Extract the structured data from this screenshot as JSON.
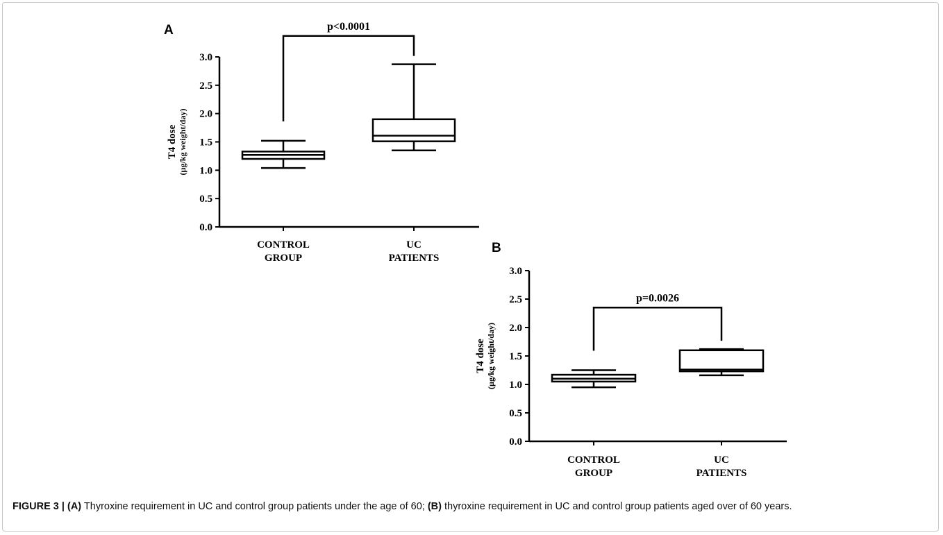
{
  "chart_data": [
    {
      "type": "boxplot",
      "panel_label": "A",
      "ylabel": "T4 dose",
      "ylabel_sub": "(µg/kg weight/day)",
      "ylim": [
        0.0,
        3.0
      ],
      "yticks": [
        "0.0",
        "0.5",
        "1.0",
        "1.5",
        "2.0",
        "2.5",
        "3.0"
      ],
      "categories": [
        [
          "CONTROL",
          "GROUP"
        ],
        [
          "UC",
          "PATIENTS"
        ]
      ],
      "boxes": [
        {
          "min": 1.04,
          "q1": 1.2,
          "median": 1.27,
          "q3": 1.33,
          "max": 1.52
        },
        {
          "min": 1.35,
          "q1": 1.51,
          "median": 1.61,
          "q3": 1.9,
          "max": 2.87
        }
      ],
      "annotation": "p<0.0001",
      "bracket_y": 3.37,
      "grid": false
    },
    {
      "type": "boxplot",
      "panel_label": "B",
      "ylabel": "T4 dose",
      "ylabel_sub": "(µg/kg weight/day)",
      "ylim": [
        0.0,
        3.0
      ],
      "yticks": [
        "0.0",
        "0.5",
        "1.0",
        "1.5",
        "2.0",
        "2.5",
        "3.0"
      ],
      "categories": [
        [
          "CONTROL",
          "GROUP"
        ],
        [
          "UC",
          "PATIENTS"
        ]
      ],
      "boxes": [
        {
          "min": 0.95,
          "q1": 1.05,
          "median": 1.1,
          "q3": 1.17,
          "max": 1.25
        },
        {
          "min": 1.16,
          "q1": 1.23,
          "median": 1.26,
          "q3": 1.6,
          "max": 1.62
        }
      ],
      "annotation": "p=0.0026",
      "bracket_y": 2.35,
      "grid": false
    }
  ],
  "caption": {
    "figure_label": "FIGURE 3 |",
    "part_a_tag": "(A)",
    "part_a_text": " Thyroxine requirement in UC and control group patients under the age of 60; ",
    "part_b_tag": "(B)",
    "part_b_text": " thyroxine requirement in UC and control group patients aged over of 60 years."
  }
}
